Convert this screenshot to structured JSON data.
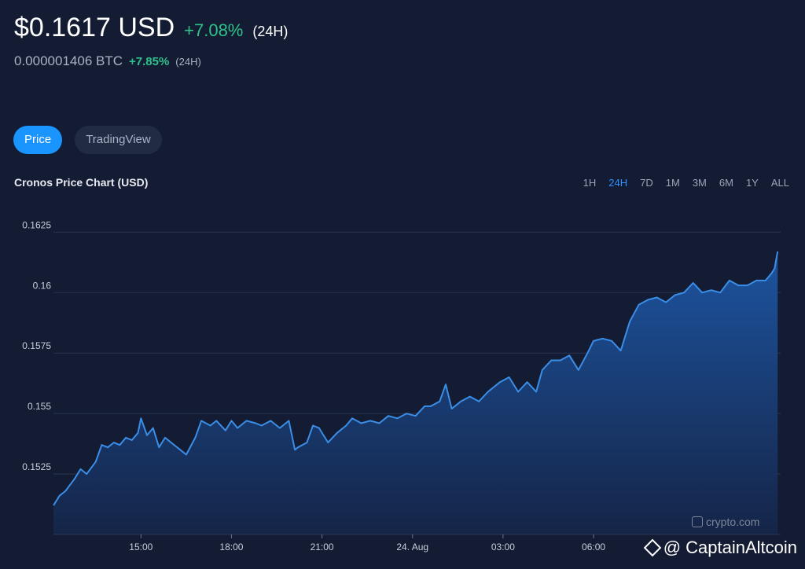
{
  "header": {
    "price": "$0.1617 USD",
    "change": "+7.08%",
    "period": "(24H)",
    "btc_price": "0.000001406 BTC",
    "btc_change": "+7.85%",
    "btc_period": "(24H)"
  },
  "tabs": [
    {
      "label": "Price",
      "active": true
    },
    {
      "label": "TradingView",
      "active": false
    }
  ],
  "chart_title": "Cronos Price Chart (USD)",
  "ranges": [
    {
      "label": "1H",
      "active": false
    },
    {
      "label": "24H",
      "active": true
    },
    {
      "label": "7D",
      "active": false
    },
    {
      "label": "1M",
      "active": false
    },
    {
      "label": "3M",
      "active": false
    },
    {
      "label": "6M",
      "active": false
    },
    {
      "label": "1Y",
      "active": false
    },
    {
      "label": "ALL",
      "active": false
    }
  ],
  "watermark": "crypto.com",
  "credit": "@ CaptainAltcoin",
  "colors": {
    "background": "#141c33",
    "line": "#3b8ee8",
    "area_top": "#1d57a6",
    "positive": "#2ec28b",
    "accent": "#1a95ff"
  },
  "chart_data": {
    "type": "area",
    "title": "Cronos Price Chart (USD)",
    "xlabel": "",
    "ylabel": "",
    "ylim": [
      0.15,
      0.163
    ],
    "yticks": [
      0.1525,
      0.155,
      0.1575,
      0.16,
      0.1625
    ],
    "ytick_labels": [
      "0.1525",
      "0.155",
      "0.1575",
      "0.16",
      "0.1625"
    ],
    "xlim": [
      12.1,
      36.2
    ],
    "xticks": [
      15,
      18,
      21,
      24,
      27,
      30
    ],
    "xtick_labels": [
      "15:00",
      "18:00",
      "21:00",
      "24. Aug",
      "03:00",
      "06:00"
    ],
    "grid": true,
    "series": [
      {
        "x": [
          12.1,
          12.3,
          12.5,
          12.8,
          13.0,
          13.2,
          13.5,
          13.7,
          13.9,
          14.1,
          14.3,
          14.5,
          14.7,
          14.9,
          15.0,
          15.2,
          15.4,
          15.6,
          15.8,
          16.0,
          16.3,
          16.5,
          16.8,
          17.0,
          17.3,
          17.5,
          17.8,
          18.0,
          18.2,
          18.5,
          18.8,
          19.0,
          19.3,
          19.6,
          19.9,
          20.1,
          20.2,
          20.5,
          20.7,
          20.9,
          21.2,
          21.5,
          21.8,
          22.0,
          22.3,
          22.6,
          22.9,
          23.2,
          23.5,
          23.8,
          24.1,
          24.4,
          24.6,
          24.9,
          25.1,
          25.3,
          25.6,
          25.9,
          26.2,
          26.5,
          26.9,
          27.2,
          27.5,
          27.8,
          28.1,
          28.3,
          28.6,
          28.9,
          29.2,
          29.5,
          29.8,
          30.0,
          30.3,
          30.6,
          30.9,
          31.2,
          31.5,
          31.8,
          32.1,
          32.4,
          32.7,
          33.0,
          33.3,
          33.6,
          33.9,
          34.2,
          34.5,
          34.8,
          35.1,
          35.4,
          35.7,
          35.9,
          36.0,
          36.1
        ],
        "values": [
          0.1512,
          0.1516,
          0.1518,
          0.1523,
          0.1527,
          0.1525,
          0.153,
          0.1537,
          0.1536,
          0.1538,
          0.1537,
          0.154,
          0.1539,
          0.1542,
          0.1548,
          0.1541,
          0.1544,
          0.1536,
          0.154,
          0.1538,
          0.1535,
          0.1533,
          0.154,
          0.1547,
          0.1545,
          0.1547,
          0.1543,
          0.1547,
          0.1544,
          0.1547,
          0.1546,
          0.1545,
          0.1547,
          0.1544,
          0.1547,
          0.1535,
          0.1536,
          0.1538,
          0.1545,
          0.1544,
          0.1538,
          0.1542,
          0.1545,
          0.1548,
          0.1546,
          0.1547,
          0.1546,
          0.1549,
          0.1548,
          0.155,
          0.1549,
          0.1553,
          0.1553,
          0.1555,
          0.1562,
          0.1552,
          0.1555,
          0.1557,
          0.1555,
          0.1559,
          0.1563,
          0.1565,
          0.1559,
          0.1563,
          0.1559,
          0.1568,
          0.1572,
          0.1572,
          0.1574,
          0.1568,
          0.1575,
          0.158,
          0.1581,
          0.158,
          0.1576,
          0.1588,
          0.1595,
          0.1597,
          0.1598,
          0.1596,
          0.1599,
          0.16,
          0.1604,
          0.16,
          0.1601,
          0.16,
          0.1605,
          0.1603,
          0.1603,
          0.1605,
          0.1605,
          0.1608,
          0.161,
          0.1617
        ]
      }
    ]
  }
}
